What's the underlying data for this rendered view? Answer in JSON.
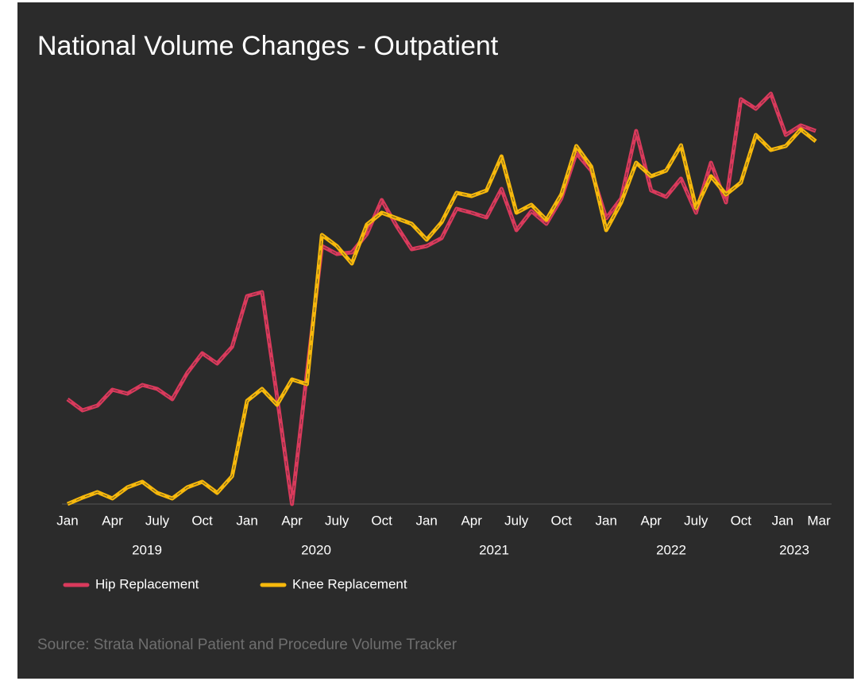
{
  "chart_data": {
    "type": "line",
    "title": "National Volume Changes - Outpatient",
    "source": "Source: Strata National Patient and Procedure Volume Tracker",
    "categories": [
      "Jan",
      null,
      null,
      "Apr",
      null,
      null,
      "July",
      null,
      null,
      "Oct",
      null,
      null,
      "Jan",
      null,
      null,
      "Apr",
      null,
      null,
      "July",
      null,
      null,
      "Oct",
      null,
      null,
      "Jan",
      null,
      null,
      "Apr",
      null,
      null,
      "July",
      null,
      null,
      "Oct",
      null,
      null,
      "Jan",
      null,
      null,
      "Apr",
      null,
      null,
      "July",
      null,
      null,
      "Oct",
      null,
      null,
      "Jan",
      null,
      "Mar"
    ],
    "years": [
      "2019",
      "2020",
      "2021",
      "2022",
      "2023"
    ],
    "ylim": [
      0,
      105
    ],
    "legend": "bottom-left",
    "series": [
      {
        "name": "Hip Replacement",
        "color": "#d93a5c",
        "values": [
          26.4,
          23.6,
          24.8,
          28.8,
          27.8,
          30,
          29,
          26.4,
          33,
          38,
          35.4,
          39.6,
          52.4,
          53.4,
          27,
          0,
          33,
          65,
          63,
          63.4,
          68,
          76.6,
          70,
          64.2,
          65,
          67,
          74.4,
          73.4,
          72.2,
          79.4,
          69,
          73.8,
          70.6,
          77,
          88.4,
          84,
          72,
          77,
          94,
          79,
          77.4,
          82,
          73.4,
          86,
          76,
          102,
          99.6,
          103.4,
          93,
          95.4,
          94
        ]
      },
      {
        "name": "Knee Replacement",
        "color": "#f6b80c",
        "values": [
          0,
          1.6,
          3,
          1.4,
          4.2,
          5.6,
          2.8,
          1.4,
          4.2,
          5.6,
          2.8,
          7,
          26,
          29,
          25,
          31.4,
          30.2,
          67.8,
          65,
          60.6,
          70.4,
          73.4,
          72,
          70.6,
          66.6,
          71,
          78.4,
          77.6,
          79,
          87.6,
          73.4,
          75.4,
          71.6,
          78,
          90.2,
          85,
          69,
          76,
          86,
          82.6,
          84,
          90.4,
          74.6,
          82.6,
          78,
          81,
          93,
          89.2,
          90.2,
          94.4,
          91.4
        ]
      }
    ]
  }
}
